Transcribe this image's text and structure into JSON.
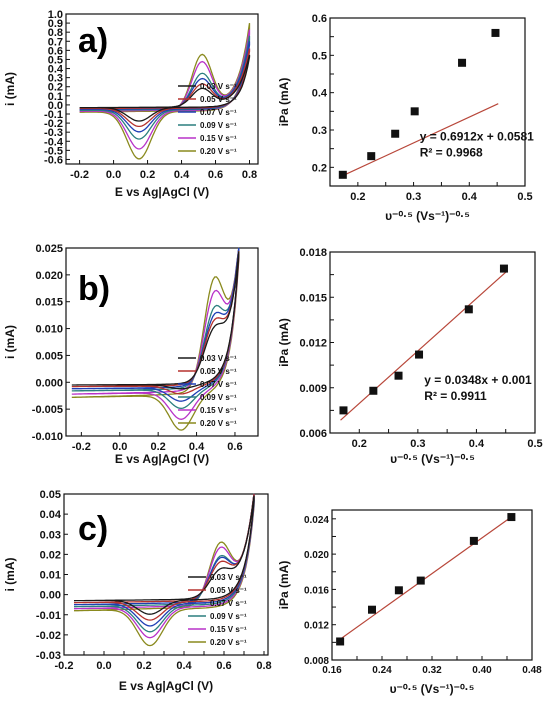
{
  "figure": {
    "panel_labels": [
      "a)",
      "b)",
      "c)"
    ]
  },
  "colors": {
    "cv_series": [
      "#1a1a1a",
      "#b5322e",
      "#1f3fb5",
      "#2b7f7f",
      "#b832c8",
      "#8a8a1e"
    ],
    "fit_line": "#b8473a",
    "marker": "#111111",
    "axis": "#111111"
  },
  "chart_data": [
    {
      "id": "cv-a",
      "type": "line",
      "xlabel": "E vs Ag|AgCl (V)",
      "ylabel": "i (mA)",
      "xlim": [
        -0.28,
        0.85
      ],
      "ylim": [
        -0.65,
        1.0
      ],
      "xticks": [
        -0.2,
        0.0,
        0.2,
        0.4,
        0.6,
        0.8
      ],
      "xtick_labels": [
        "-0.2",
        "0.0",
        "0.2",
        "0.4",
        "0.6",
        "0.8"
      ],
      "yticks": [
        -0.6,
        -0.5,
        -0.4,
        -0.3,
        -0.2,
        -0.1,
        0.0,
        0.1,
        0.2,
        0.3,
        0.4,
        0.5,
        0.6,
        0.7,
        0.8,
        0.9,
        1.0
      ],
      "ytick_labels": [
        "-0.6",
        "-0.5",
        "-0.4",
        "-0.3",
        "-0.2",
        "-0.1",
        "0.0",
        "0.1",
        "0.2",
        "0.3",
        "0.4",
        "0.5",
        "0.6",
        "0.7",
        "0.8",
        "0.9",
        "1.0"
      ],
      "legend": [
        "0.03 V s⁻¹",
        "0.05 V s⁻¹",
        "0.07 V s⁻¹",
        "0.09 V s⁻¹",
        "0.15 V s⁻¹",
        "0.20 V s⁻¹"
      ],
      "legend_position": "lower-right",
      "grid": false,
      "cv_params": {
        "e_start": -0.2,
        "e_end": 0.8,
        "epa": 0.52,
        "epc": 0.15,
        "ipa": [
          0.18,
          0.23,
          0.29,
          0.35,
          0.48,
          0.56
        ],
        "ipc": [
          -0.15,
          -0.2,
          -0.25,
          -0.32,
          -0.42,
          -0.52
        ],
        "i_end": [
          0.55,
          0.62,
          0.7,
          0.76,
          0.83,
          0.9
        ],
        "i_start": [
          -0.03,
          -0.04,
          -0.05,
          -0.06,
          -0.07,
          -0.08
        ]
      }
    },
    {
      "id": "fit-a",
      "type": "scatter",
      "xlabel": "υ⁻⁰·⁵ (Vs⁻¹)⁻⁰·⁵",
      "ylabel": "iPa (mA)",
      "xlim": [
        0.15,
        0.5
      ],
      "ylim": [
        0.15,
        0.6
      ],
      "xticks": [
        0.2,
        0.25,
        0.3,
        0.35,
        0.4,
        0.45,
        0.5
      ],
      "xtick_labels": [
        "0.2",
        "",
        "0.3",
        "",
        "0.4",
        "",
        "0.5"
      ],
      "yticks": [
        0.2,
        0.25,
        0.3,
        0.35,
        0.4,
        0.45,
        0.5,
        0.55,
        0.6
      ],
      "ytick_labels": [
        "0.2",
        "",
        "0.3",
        "",
        "0.4",
        "",
        "0.5",
        "",
        "0.6"
      ],
      "x": [
        0.173,
        0.224,
        0.267,
        0.302,
        0.387,
        0.447
      ],
      "y": [
        0.18,
        0.23,
        0.29,
        0.35,
        0.48,
        0.56
      ],
      "fit": {
        "slope": 0.6912,
        "intercept": 0.0581
      },
      "annotations": [
        "y = 0.6912x + 0.0581",
        "R² = 0.9968"
      ]
    },
    {
      "id": "cv-b",
      "type": "line",
      "xlabel": "E vs Ag|AgCl (V)",
      "ylabel": "i (mA)",
      "xlim": [
        -0.28,
        0.72
      ],
      "ylim": [
        -0.01,
        0.025
      ],
      "xticks": [
        -0.2,
        0.0,
        0.2,
        0.4,
        0.6
      ],
      "xtick_labels": [
        "-0.2",
        "0.0",
        "0.2",
        "0.4",
        "0.6"
      ],
      "yticks": [
        -0.01,
        -0.005,
        0.0,
        0.005,
        0.01,
        0.015,
        0.02,
        0.025
      ],
      "ytick_labels": [
        "-0.010",
        "-0.005",
        "0.000",
        "0.005",
        "0.010",
        "0.015",
        "0.020",
        "0.025"
      ],
      "legend": [
        "0.03 V s⁻¹",
        "0.05 V s⁻¹",
        "0.07 V s⁻¹",
        "0.09 V s⁻¹",
        "0.15 V s⁻¹",
        "0.20 V s⁻¹"
      ],
      "legend_position": "lower-right",
      "grid": false,
      "cv_params": {
        "e_start": -0.25,
        "e_end": 0.62,
        "epa": 0.49,
        "epc": 0.32,
        "ipa": [
          0.0075,
          0.0088,
          0.0098,
          0.0112,
          0.0142,
          0.0169
        ],
        "ipc": [
          -0.0008,
          -0.0015,
          -0.0025,
          -0.0035,
          -0.005,
          -0.0065
        ],
        "i_end": [
          0.024,
          0.024,
          0.025,
          0.025,
          0.025,
          0.025
        ],
        "i_start": [
          -0.0005,
          -0.0008,
          -0.0012,
          -0.0016,
          -0.0022,
          -0.0028
        ]
      }
    },
    {
      "id": "fit-b",
      "type": "scatter",
      "xlabel": "υ⁻⁰·⁵ (Vs⁻¹)⁻⁰·⁵",
      "ylabel": "iPa (mA)",
      "xlim": [
        0.15,
        0.5
      ],
      "ylim": [
        0.006,
        0.018
      ],
      "xticks": [
        0.2,
        0.25,
        0.3,
        0.35,
        0.4,
        0.45,
        0.5
      ],
      "xtick_labels": [
        "0.2",
        "",
        "0.3",
        "",
        "0.4",
        "",
        "0.5"
      ],
      "yticks": [
        0.006,
        0.0075,
        0.009,
        0.0105,
        0.012,
        0.0135,
        0.015,
        0.0165,
        0.018
      ],
      "ytick_labels": [
        "0.006",
        "",
        "0.009",
        "",
        "0.012",
        "",
        "0.015",
        "",
        "0.018"
      ],
      "x": [
        0.173,
        0.224,
        0.267,
        0.302,
        0.387,
        0.447
      ],
      "y": [
        0.0075,
        0.0088,
        0.0098,
        0.0112,
        0.0142,
        0.0169
      ],
      "fit": {
        "slope": 0.0348,
        "intercept": 0.001
      },
      "annotations": [
        "y = 0.0348x + 0.001",
        "R² = 0.9911"
      ]
    },
    {
      "id": "cv-c",
      "type": "line",
      "xlabel": "E vs Ag|AgCl (V)",
      "ylabel": "i (mA)",
      "xlim": [
        -0.2,
        0.82
      ],
      "ylim": [
        -0.03,
        0.05
      ],
      "xticks": [
        -0.2,
        -0.1,
        0.0,
        0.1,
        0.2,
        0.3,
        0.4,
        0.5,
        0.6,
        0.7,
        0.8
      ],
      "xtick_labels": [
        "-0.2",
        "",
        "0.0",
        "",
        "0.2",
        "",
        "0.4",
        "",
        "0.6",
        "",
        "0.8"
      ],
      "yticks": [
        -0.03,
        -0.02,
        -0.01,
        0.0,
        0.01,
        0.02,
        0.03,
        0.04,
        0.05
      ],
      "ytick_labels": [
        "-0.03",
        "-0.02",
        "-0.01",
        "0.00",
        "0.01",
        "0.02",
        "0.03",
        "0.04",
        "0.05"
      ],
      "legend": [
        "0.03 V s⁻¹",
        "0.05 V s⁻¹",
        "0.07 V s⁻¹",
        "0.09 V s⁻¹",
        "0.15 V s⁻¹",
        "0.20 V s⁻¹"
      ],
      "legend_position": "lower-right",
      "grid": false,
      "cv_params": {
        "e_start": -0.15,
        "e_end": 0.75,
        "epa": 0.58,
        "epc": 0.23,
        "ipa": [
          0.0101,
          0.0137,
          0.0159,
          0.017,
          0.0215,
          0.0242
        ],
        "ipc": [
          -0.007,
          -0.009,
          -0.011,
          -0.013,
          -0.015,
          -0.018
        ],
        "i_end": [
          0.049,
          0.05,
          0.05,
          0.05,
          0.05,
          0.05
        ],
        "i_start": [
          -0.003,
          -0.004,
          -0.005,
          -0.006,
          -0.007,
          -0.008
        ]
      }
    },
    {
      "id": "fit-c",
      "type": "scatter",
      "xlabel": "υ⁻⁰·⁵ (Vs⁻¹)⁻⁰·⁵",
      "ylabel": "iPa (mA)",
      "xlim": [
        0.16,
        0.48
      ],
      "ylim": [
        0.008,
        0.025
      ],
      "xticks": [
        0.16,
        0.2,
        0.24,
        0.28,
        0.32,
        0.36,
        0.4,
        0.44,
        0.48
      ],
      "xtick_labels": [
        "0.16",
        "",
        "0.24",
        "",
        "0.32",
        "",
        "0.40",
        "",
        "0.48"
      ],
      "yticks": [
        0.008,
        0.01,
        0.012,
        0.014,
        0.016,
        0.018,
        0.02,
        0.022,
        0.024
      ],
      "ytick_labels": [
        "0.008",
        "",
        "0.012",
        "",
        "0.016",
        "",
        "0.020",
        "",
        "0.024"
      ],
      "x": [
        0.173,
        0.224,
        0.267,
        0.302,
        0.387,
        0.447
      ],
      "y": [
        0.0101,
        0.0137,
        0.0159,
        0.017,
        0.0215,
        0.0242
      ],
      "fit": {
        "slope": 0.0506,
        "intercept": 0.0016
      },
      "annotations": []
    }
  ]
}
